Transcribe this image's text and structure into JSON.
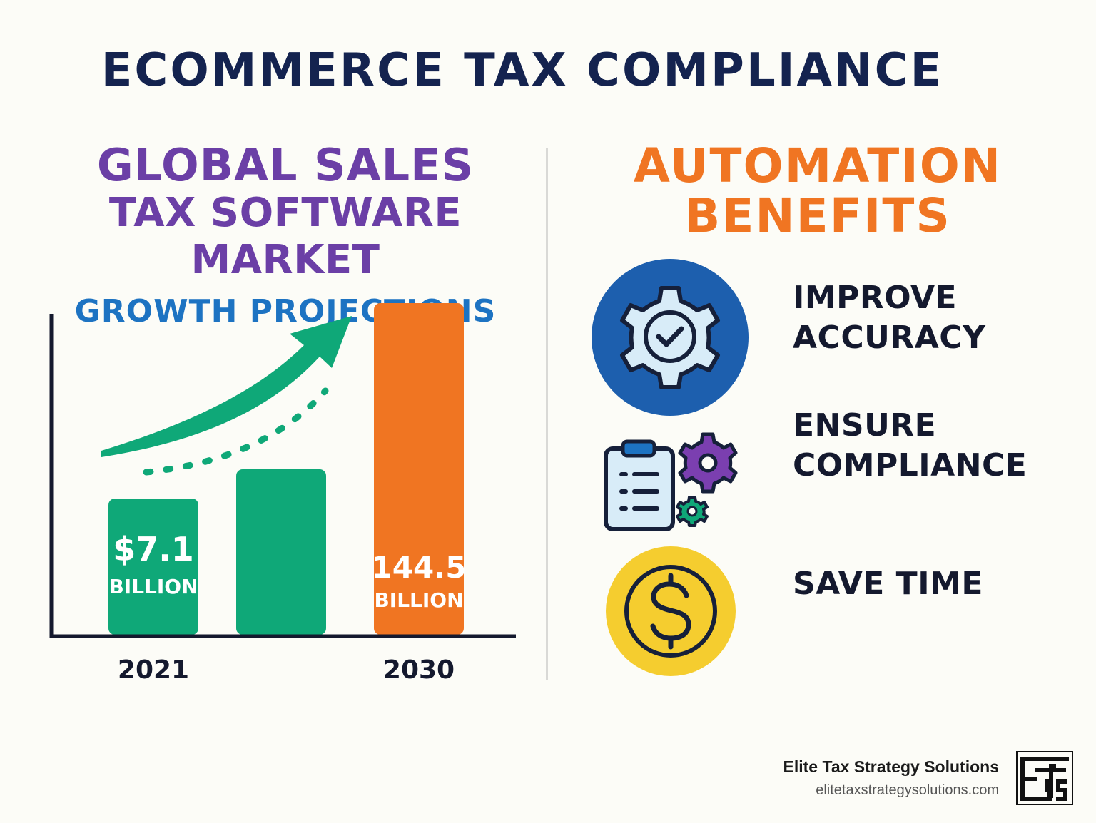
{
  "title": "ECOMMERCE TAX COMPLIANCE",
  "left_heading": {
    "line1": "GLOBAL SALES",
    "line2": "TAX SOFTWARE MARKET",
    "line3": "GROWTH PROJECTIONS"
  },
  "right_heading": {
    "line1": "AUTOMATION",
    "line2": "BENEFITS"
  },
  "benefits": [
    {
      "line1": "IMPROVE",
      "line2": "ACCURACY",
      "icon": "gear-check-icon"
    },
    {
      "line1": "ENSURE",
      "line2": "COMPLIANCE",
      "icon": "clipboard-gears-icon"
    },
    {
      "line1": "SAVE TIME",
      "line2": "",
      "icon": "dollar-coin-icon"
    }
  ],
  "footer": {
    "company": "Elite Tax Strategy Solutions",
    "url": "elitetaxstrategysolutions.com",
    "logo_text": "ETSS"
  },
  "colors": {
    "green": "#0fa878",
    "orange": "#f07522",
    "purple": "#6b3fa6",
    "blue": "#1d73c2",
    "navy": "#14234f",
    "yellow": "#f5cd2f"
  },
  "chart_data": {
    "type": "bar",
    "categories": [
      "2021",
      "",
      "2030"
    ],
    "values": [
      7.1,
      null,
      144.5
    ],
    "value_labels": [
      {
        "amount": "$7.1",
        "unit": "BILLION"
      },
      {
        "amount": "",
        "unit": ""
      },
      {
        "amount": "144.5",
        "unit": "BILLION"
      }
    ],
    "unit": "BILLION",
    "trend": "upward arrow"
  }
}
